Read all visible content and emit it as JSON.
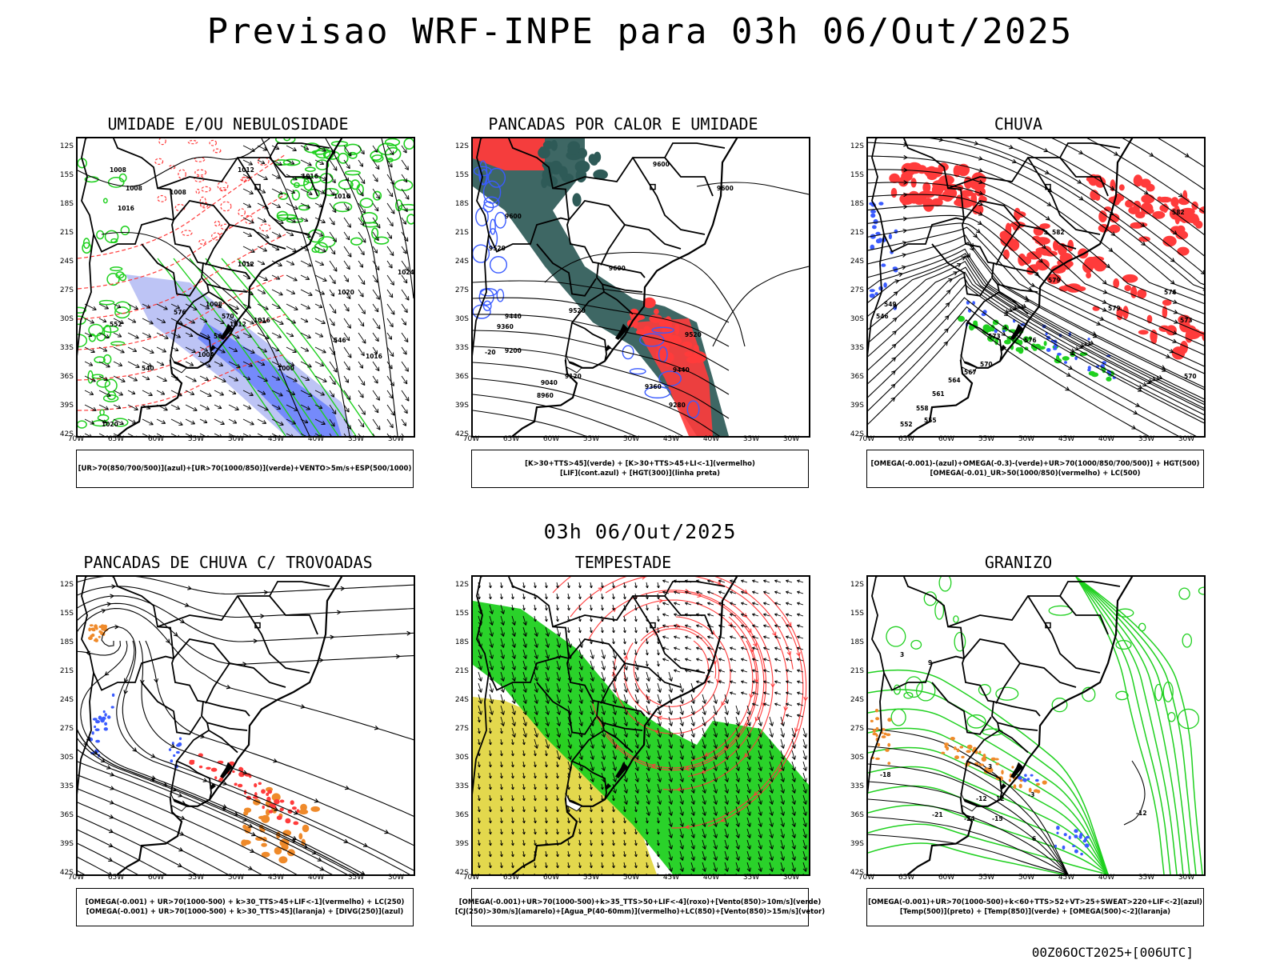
{
  "header": {
    "title": "Previsao WRF-INPE  para 03h 06/Out/2025",
    "mid_title": "03h 06/Out/2025",
    "footer_code": "00Z06OCT2025+[006UTC]"
  },
  "axes": {
    "lat_ticks": [
      "12S",
      "15S",
      "18S",
      "21S",
      "24S",
      "27S",
      "30S",
      "33S",
      "36S",
      "39S",
      "42S"
    ],
    "lon_ticks": [
      "70W",
      "65W",
      "60W",
      "55W",
      "50W",
      "45W",
      "40W",
      "35W",
      "30W"
    ]
  },
  "colors": {
    "red": "#ff3b3b",
    "green": "#1fd01f",
    "blue": "#3a5bff",
    "lavender": "#9aa5f0",
    "teal": "#2e5a57",
    "yellow": "#e0d43a",
    "orange": "#ef8a2a",
    "black": "#000000"
  },
  "panels": [
    {
      "id": "umidade",
      "title": "UMIDADE E/OU NEBULOSIDADE",
      "legend": [
        "[UR>70(850/700/500)](azul)+[UR>70(1000/850)](verde)+VENTO>5m/s+ESP(500/1000)"
      ],
      "contour_labels": [
        "1008",
        "1008",
        "1008",
        "1012",
        "1016",
        "1016",
        "1016",
        "1012",
        "1008",
        "1020",
        "1024",
        "1016",
        "1012",
        "1004",
        "1000",
        "1016",
        "1020",
        "576",
        "570",
        "564",
        "552",
        "546",
        "540"
      ]
    },
    {
      "id": "pancadas-calor",
      "title": "PANCADAS POR CALOR E UMIDADE",
      "legend": [
        "[K>30+TTS>45](verde) + [K>30+TTS>45+LI<-1](vermelho)",
        "[LIF](cont.azul) + [HGT(300)](linha preta)"
      ],
      "contour_labels": [
        "9600",
        "9600",
        "9600",
        "9520",
        "9600",
        "9440",
        "9360",
        "9520",
        "9200",
        "9520",
        "9040",
        "9120",
        "8960",
        "9440",
        "9360",
        "9280",
        "-20"
      ]
    },
    {
      "id": "chuva",
      "title": "CHUVA",
      "legend": [
        "[OMEGA(-0.001)-(azul)+OMEGA(-0.3)-(verde)+UR>70(1000/850/700/500)] + HGT(500)",
        "[OMEGA(-0.01)_UR>50(1000/850)(vermelho) + LC(500)"
      ],
      "contour_labels": [
        "582",
        "582",
        "579",
        "576",
        "573",
        "570",
        "567",
        "564",
        "561",
        "558",
        "555",
        "552",
        "549",
        "546",
        "579",
        "576",
        "573",
        "570"
      ]
    },
    {
      "id": "pancadas-trovoadas",
      "title": "PANCADAS DE CHUVA C/ TROVOADAS",
      "legend": [
        "[OMEGA(-0.001) + UR>70(1000-500) + k>30_TTS>45+LIF<-1](vermelho) + LC(250)",
        "[OMEGA(-0.001) + UR>70(1000-500) + k>30_TTS>45](laranja) + [DIVG(250)](azul)"
      ],
      "contour_labels": []
    },
    {
      "id": "tempestade",
      "title": "TEMPESTADE",
      "legend": [
        "[OMEGA(-0.001)+UR>70(1000-500)+k>35_TTS>50+LIF<-4](roxo)+[Vento(850)>10m/s](verde)",
        "[CJ(250)>30m/s](amarelo)+[Agua_P(40-60mm)](vermelho)+LC(850)+[Vento(850)>15m/s](vetor)"
      ],
      "contour_labels": []
    },
    {
      "id": "granizo",
      "title": "GRANIZO",
      "legend": [
        "[OMEGA(-0.001)+UR>70(1000-500)+k<60+TTS>52+VT>25+SWEAT>220+LIF<-2](azul)",
        "[Temp(500)](preto) + [Temp(850)](verde) + [OMEGA(500)<-2](laranja)"
      ],
      "contour_labels": [
        "3",
        "9",
        "-18",
        "-21",
        "-24",
        "-12",
        "-15",
        "6",
        "12",
        "-12",
        "3",
        "-3"
      ]
    }
  ]
}
